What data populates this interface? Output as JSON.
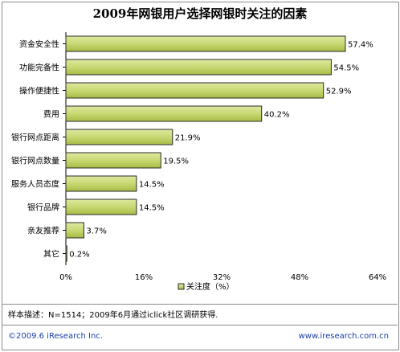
{
  "chart_data": {
    "type": "bar",
    "orientation": "horizontal",
    "title": "2009年网银用户选择网银时关注的因素",
    "categories": [
      "资金安全性",
      "功能完备性",
      "操作便捷性",
      "费用",
      "银行网点距离",
      "银行网点数量",
      "服务人员态度",
      "银行品牌",
      "亲友推荐",
      "其它"
    ],
    "values": [
      57.4,
      54.5,
      52.9,
      40.2,
      21.9,
      19.5,
      14.5,
      14.5,
      3.7,
      0.2
    ],
    "value_labels": [
      "57.4%",
      "54.5%",
      "52.9%",
      "40.2%",
      "21.9%",
      "19.5%",
      "14.5%",
      "14.5%",
      "3.7%",
      "0.2%"
    ],
    "xlim": [
      0,
      64
    ],
    "xticks": [
      0,
      16,
      32,
      48,
      64
    ],
    "xtick_labels": [
      "0%",
      "16%",
      "32%",
      "48%",
      "64%"
    ],
    "legend": {
      "label": "关注度（%）",
      "placement": "bottom-center"
    },
    "grid": false,
    "bar_color": "#2a2a2a",
    "bar_fill": "#c5d56c"
  },
  "footer": {
    "note": "样本描述：N=1514；2009年6月通过iclick社区调研获得.",
    "copyright": "©2009.6 iResearch Inc.",
    "website": "www.iresearch.com.cn"
  }
}
